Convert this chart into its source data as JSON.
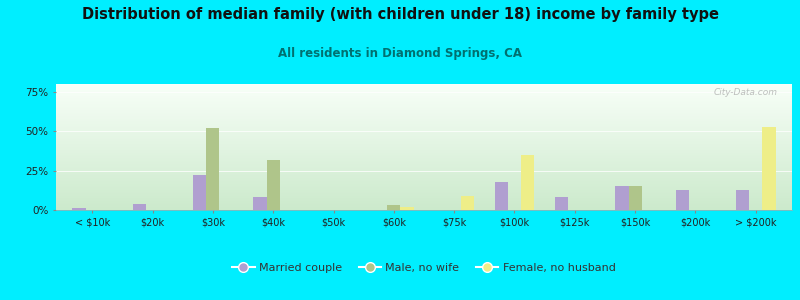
{
  "title": "Distribution of median family (with children under 18) income by family type",
  "subtitle": "All residents in Diamond Springs, CA",
  "categories": [
    "< $10k",
    "$20k",
    "$30k",
    "$40k",
    "$50k",
    "$60k",
    "$75k",
    "$100k",
    "$125k",
    "$150k",
    "$200k",
    "> $200k"
  ],
  "married_couple": [
    1,
    4,
    22,
    8,
    0,
    0,
    0,
    18,
    8,
    15,
    13,
    13
  ],
  "male_no_wife": [
    0,
    0,
    52,
    32,
    0,
    3,
    0,
    0,
    0,
    15,
    0,
    0
  ],
  "female_no_husband": [
    0,
    0,
    0,
    0,
    0,
    2,
    9,
    35,
    0,
    0,
    0,
    53
  ],
  "married_color": "#b09fd0",
  "male_color": "#afc58a",
  "female_color": "#eeee88",
  "bg_color": "#00eeff",
  "ylim": [
    0,
    80
  ],
  "yticks": [
    0,
    25,
    50,
    75
  ],
  "ytick_labels": [
    "0%",
    "25%",
    "50%",
    "75%"
  ],
  "watermark": "City-Data.com",
  "legend_labels": [
    "Married couple",
    "Male, no wife",
    "Female, no husband"
  ],
  "title_fontsize": 10.5,
  "subtitle_fontsize": 8.5
}
